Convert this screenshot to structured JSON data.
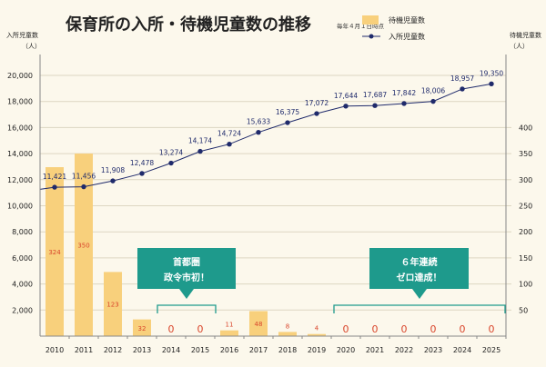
{
  "chart_data": {
    "type": "bar+line",
    "title": "保育所の入所・待機児童数の推移",
    "subtitle": "毎年４月１日時点",
    "categories": [
      "2010",
      "2011",
      "2012",
      "2013",
      "2014",
      "2015",
      "2016",
      "2017",
      "2018",
      "2019",
      "2020",
      "2021",
      "2022",
      "2023",
      "2024",
      "2025"
    ],
    "series": [
      {
        "name": "待機児童数",
        "type": "bar",
        "axis": "right",
        "values": [
          324,
          350,
          123,
          32,
          0,
          0,
          11,
          48,
          8,
          4,
          0,
          0,
          0,
          0,
          0,
          0
        ]
      },
      {
        "name": "入所児童数",
        "type": "line",
        "axis": "left",
        "values": [
          11421,
          11456,
          11908,
          12478,
          13274,
          14174,
          14724,
          15633,
          16375,
          17072,
          17644,
          17687,
          17842,
          18006,
          18957,
          19350
        ],
        "labels": [
          "11,421",
          "11,456",
          "11,908",
          "12,478",
          "13,274",
          "14,174",
          "14,724",
          "15,633",
          "16,375",
          "17,072",
          "17,644",
          "17,687",
          "17,842",
          "18,006",
          "18,957",
          "19,350"
        ]
      }
    ],
    "left_axis": {
      "label": "入所児童数",
      "unit": "（人）",
      "range": [
        0,
        22000
      ],
      "ticks": [
        2000,
        4000,
        6000,
        8000,
        10000,
        12000,
        14000,
        16000,
        18000,
        20000
      ],
      "tick_labels": [
        "2,000",
        "4,000",
        "6,000",
        "8,000",
        "10,000",
        "12,000",
        "14,000",
        "16,000",
        "18,000",
        "20,000"
      ]
    },
    "right_axis": {
      "label": "待機児童数",
      "unit": "（人）",
      "range": [
        0,
        550
      ],
      "ticks": [
        50,
        100,
        150,
        200,
        250,
        300,
        350,
        400
      ],
      "tick_labels": [
        "50",
        "100",
        "150",
        "200",
        "250",
        "300",
        "350",
        "400"
      ]
    },
    "grid": true,
    "legend": {
      "position": "top-right",
      "entries": [
        "待機児童数",
        "入所児童数"
      ]
    },
    "annotations": [
      {
        "lines": [
          "首都圏",
          "政令市初！"
        ],
        "span": [
          "2014",
          "2015"
        ]
      },
      {
        "lines": [
          "６年連続",
          "ゼロ達成！"
        ],
        "span": [
          "2020",
          "2025"
        ]
      }
    ],
    "colors": {
      "bar": "#f8d07c",
      "line": "#1f2a6b",
      "bar_label": "#d9452b",
      "callout": "#1e9a8c",
      "grid": "#ddd6c2",
      "background": "#fcf8ec"
    }
  }
}
